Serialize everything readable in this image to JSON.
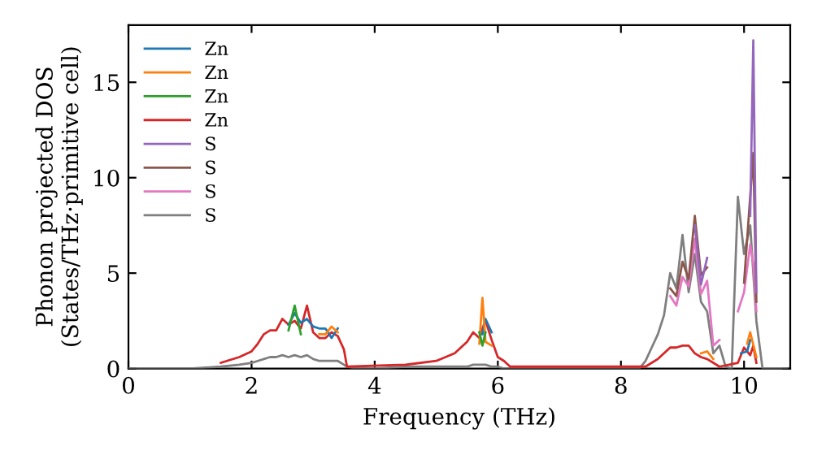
{
  "chart_data": {
    "type": "line",
    "xlabel": "Frequency (THz)",
    "ylabel": "Phonon projected DOS\n(States/THz·primitive cell)",
    "series": [
      {
        "name": "Zn",
        "color": "#1f77b4",
        "x": [
          2.6,
          2.7,
          2.8,
          2.9,
          3.0,
          3.1,
          3.2,
          3.3,
          3.4,
          3.5,
          5.75,
          5.8,
          5.9,
          6.0,
          9.95,
          10.05,
          10.1
        ],
        "values": [
          2.3,
          2.9,
          2.4,
          2.6,
          2.2,
          2.1,
          2.1,
          1.6,
          2.1,
          null,
          1.8,
          2.6,
          1.9,
          null,
          0.8,
          0.9,
          1.5
        ]
      },
      {
        "name": "Zn",
        "color": "#ff7f0e",
        "x": [
          3.1,
          3.2,
          3.3,
          3.4,
          3.5,
          5.7,
          5.75,
          5.8,
          5.9,
          6.0,
          9.3,
          9.4,
          9.5,
          9.6,
          10.05,
          10.1,
          10.2
        ],
        "values": [
          1.8,
          1.8,
          2.2,
          1.9,
          null,
          1.3,
          3.7,
          1.4,
          1.2,
          null,
          0.8,
          0.9,
          0.5,
          null,
          1.3,
          1.9,
          0.6
        ]
      },
      {
        "name": "Zn",
        "color": "#2ca02c",
        "x": [
          2.6,
          2.7,
          2.8,
          2.9,
          5.7,
          5.75,
          5.8
        ],
        "values": [
          2.0,
          3.3,
          1.8,
          null,
          1.9,
          1.2,
          1.9
        ]
      },
      {
        "name": "Zn",
        "color": "#d62728",
        "x": [
          1.5,
          1.8,
          2.0,
          2.1,
          2.2,
          2.3,
          2.4,
          2.5,
          2.6,
          2.7,
          2.8,
          2.9,
          3.0,
          3.1,
          3.2,
          3.3,
          3.4,
          3.5,
          3.55,
          4.5,
          5.0,
          5.3,
          5.5,
          5.6,
          5.7,
          5.75,
          5.8,
          5.9,
          6.0,
          6.1,
          6.2,
          8.4,
          8.5,
          8.6,
          8.7,
          8.8,
          8.9,
          9.0,
          9.1,
          9.2,
          9.3,
          9.4,
          9.5,
          9.6,
          9.9,
          10.0,
          10.1,
          10.15,
          10.2
        ],
        "values": [
          0.3,
          0.6,
          0.9,
          1.3,
          1.8,
          2.0,
          2.0,
          2.6,
          2.3,
          2.5,
          2.1,
          3.3,
          1.9,
          1.6,
          1.6,
          1.9,
          1.7,
          1.0,
          0.1,
          0.2,
          0.4,
          0.8,
          1.4,
          1.9,
          1.6,
          2.1,
          2.5,
          1.5,
          0.6,
          0.4,
          0.1,
          0.1,
          0.3,
          0.5,
          0.8,
          1.1,
          1.1,
          1.2,
          1.2,
          0.8,
          0.6,
          0.5,
          0.3,
          0.1,
          0.3,
          1.1,
          0.7,
          1.2,
          0.3
        ]
      },
      {
        "name": "S",
        "color": "#9467bd",
        "x": [
          9.2,
          9.3,
          9.4,
          9.5,
          10.1,
          10.15,
          10.2
        ],
        "values": [
          7.5,
          4.4,
          5.8,
          null,
          8.0,
          17.2,
          4.0
        ]
      },
      {
        "name": "S",
        "color": "#8c564b",
        "x": [
          8.8,
          8.9,
          9.0,
          9.1,
          9.2,
          9.3,
          9.4,
          9.5,
          10.0,
          10.15,
          10.2
        ],
        "values": [
          4.2,
          3.8,
          5.6,
          4.7,
          8.0,
          4.9,
          5.3,
          null,
          4.5,
          11.3,
          3.5
        ]
      },
      {
        "name": "S",
        "color": "#e377c2",
        "x": [
          8.8,
          8.9,
          9.0,
          9.1,
          9.2,
          9.3,
          9.4,
          9.5,
          9.6,
          9.7,
          9.9,
          10.0,
          10.1,
          10.15,
          10.2
        ],
        "values": [
          3.8,
          3.3,
          4.8,
          4.3,
          6.8,
          3.9,
          4.6,
          1.2,
          1.5,
          null,
          3.0,
          4.0,
          6.5,
          5.5,
          3.0
        ]
      },
      {
        "name": "S",
        "color": "#7f7f7f",
        "x": [
          0,
          0.5,
          1.0,
          1.5,
          1.8,
          2.0,
          2.1,
          2.2,
          2.3,
          2.4,
          2.5,
          2.6,
          2.7,
          2.8,
          2.9,
          3.0,
          3.1,
          3.2,
          3.3,
          3.4,
          3.5,
          3.55,
          3.7,
          4.0,
          4.5,
          5.0,
          5.3,
          5.5,
          5.6,
          5.7,
          5.75,
          5.8,
          5.9,
          6.0,
          6.1,
          6.2,
          6.3,
          6.5,
          7.0,
          8.0,
          8.3,
          8.4,
          8.5,
          8.6,
          8.7,
          8.8,
          8.9,
          9.0,
          9.1,
          9.2,
          9.3,
          9.4,
          9.5,
          9.6,
          9.7,
          9.8,
          9.9,
          10.0,
          10.1,
          10.15,
          10.2,
          10.3,
          10.5,
          10.7
        ],
        "values": [
          0,
          0,
          0,
          0.1,
          0.2,
          0.3,
          0.4,
          0.5,
          0.6,
          0.6,
          0.7,
          0.6,
          0.7,
          0.6,
          0.7,
          0.5,
          0.4,
          0.4,
          0.4,
          0.4,
          0.2,
          0.1,
          0,
          0,
          0.1,
          0.1,
          0.1,
          0.1,
          0.2,
          0.2,
          0.2,
          0.2,
          0.1,
          0.1,
          0,
          0,
          0,
          0,
          0,
          0,
          0,
          0.4,
          1.1,
          1.8,
          2.8,
          5.0,
          4.2,
          7.0,
          4.0,
          6.0,
          3.5,
          3.0,
          0.8,
          1.2,
          0.1,
          0,
          9.0,
          6.0,
          7.5,
          5.0,
          2.5,
          0,
          0,
          0
        ]
      }
    ],
    "xlim": [
      0,
      10.75
    ],
    "ylim": [
      0,
      18
    ],
    "xticks": [
      0,
      2,
      4,
      6,
      8,
      10
    ],
    "yticks": [
      0,
      5,
      10,
      15
    ],
    "grid": false,
    "legend": "top left",
    "marker": "none",
    "line_style": "solid"
  }
}
